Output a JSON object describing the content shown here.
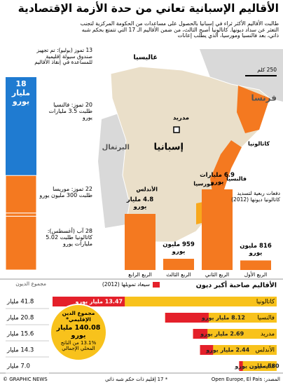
{
  "header": {
    "title": "الأقاليم الإسبانية تعاني من حدة الأزمة الإقتصادية",
    "subtitle": "طالبت الأقاليم الأكثر ثراء في إسبانيا بالحصول على مساعدات من الحكومة المركزية لتجنب التعثر عن سداد ديونها. كاتالونيا أصبح الثالث، من ضمن الأقاليم الـ 17 التي تتمتع بحكم شبه ذاتي، بعد فالنسيا ومورسيا، الذي يطلب إعانات"
  },
  "map": {
    "labels": [
      "غاليسيا",
      "فرنسا",
      "البرتغال",
      "مدريد",
      "إسبانيا",
      "كاتالونيا",
      "فالنسيا",
      "الأندلس",
      "مورسيا"
    ],
    "scale": "250 كلم"
  },
  "chart_data": [
    {
      "type": "stacked-column",
      "fund": {
        "label": "13 تموز (يوليو): تم تجهيز صندوق سيولة إقليمية للمساعدة في إنقاذ الأقاليم",
        "value": 18,
        "value_label": "18 مليار يورو",
        "color": "#1f7bd1"
      },
      "requests": {
        "labels": [
          "20 تموز: فالنسيا طلبت 3.5 مليارات يورو",
          "22 تموز: موريسا طلبت 300 مليون يورو",
          "28 آب (أغسطس): كاتالونيا طلبت 5.02 مليارات يورو"
        ],
        "values": [
          3.5,
          0.3,
          5.02
        ],
        "color": "#f47920"
      }
    },
    {
      "type": "bar",
      "title": "دفعات ربعية لتسديد كاتالونيا ديونها (2012)",
      "categories": [
        "الربع الأول",
        "الربع الثاني",
        "الربع الثالث",
        "الربع الرابع"
      ],
      "values": [
        816,
        6900,
        959,
        4800
      ],
      "value_labels": [
        "816 مليون يورو",
        "6.9 مليارات يورو",
        "959 مليون يورو",
        "4.8 مليار يورو"
      ],
      "color": "#f47920"
    },
    {
      "type": "hbar",
      "title": "الأقاليم صاحبة أكبر ديون",
      "categories": [
        "كاتالونيا",
        "فالنسيا",
        "مدريد",
        "الأندلس",
        "غاليسيا"
      ],
      "series": [
        {
          "name": "مجموع الديون",
          "color": "#f8c21c",
          "values": [
            41.8,
            20.8,
            15.6,
            14.3,
            7.0
          ],
          "value_labels": [
            "41.8 مليار",
            "20.8 مليار",
            "15.6 مليار",
            "14.3 مليار",
            "7.0 مليار"
          ]
        },
        {
          "name": "سيعاد تمويلها (2012)",
          "color": "#e4202a",
          "values": [
            13.47,
            8.12,
            2.69,
            2.44,
            0.68
          ],
          "value_labels": [
            "13.47 مليار يورو",
            "8.12 مليار يورو",
            "2.69 مليار يورو",
            "2.44 مليار يورو",
            "680 مليون يورو"
          ]
        }
      ],
      "total": {
        "title": "مجموع الدين الإقليمي*",
        "value": 140.08,
        "value_label": "140.08 مليار يورو",
        "share": 13.1,
        "share_label": "13.1% من الناتج المحلي الإجمالي"
      }
    }
  ],
  "footer": {
    "source": "المصدر: Open Europe, El Pais",
    "note": "* 17 إقليم ذات حكم شبه ذاتي",
    "copyright": "© GRAPHIC NEWS"
  }
}
